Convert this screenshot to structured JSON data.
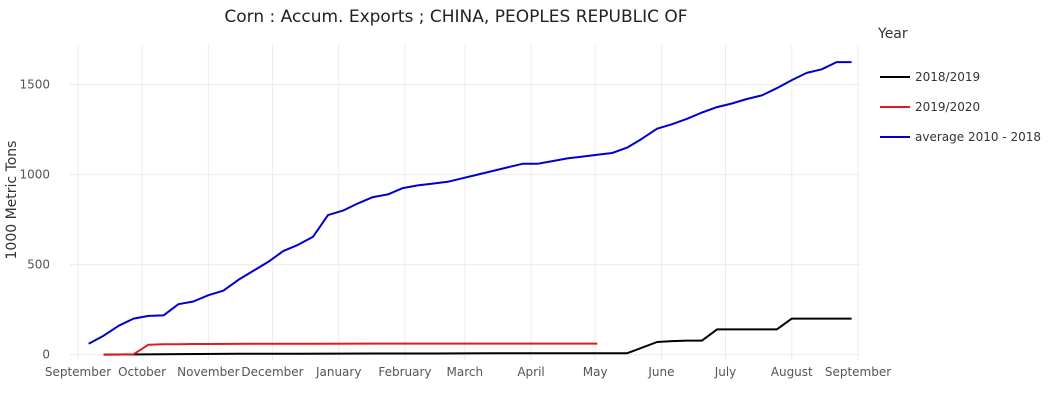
{
  "chart_data": {
    "type": "line",
    "title": "Corn :  Accum. Exports ;  CHINA, PEOPLES REPUBLIC OF",
    "xlabel": "",
    "ylabel": "1000 Metric Tons",
    "ylim": [
      -30,
      1720
    ],
    "yticks": [
      0,
      500,
      1000,
      1500
    ],
    "grid": true,
    "legend": {
      "title": "Year",
      "placement": "right"
    },
    "x_domain": [
      "2018-09-01",
      "2019-09-01"
    ],
    "x_ticks": [
      {
        "date": "2018-09-01",
        "label": "September"
      },
      {
        "date": "2018-10-01",
        "label": "October"
      },
      {
        "date": "2018-11-01",
        "label": "November"
      },
      {
        "date": "2018-12-01",
        "label": "December"
      },
      {
        "date": "2019-01-01",
        "label": "January"
      },
      {
        "date": "2019-02-01",
        "label": "February"
      },
      {
        "date": "2019-03-01",
        "label": "March"
      },
      {
        "date": "2019-04-01",
        "label": "April"
      },
      {
        "date": "2019-05-01",
        "label": "May"
      },
      {
        "date": "2019-06-01",
        "label": "June"
      },
      {
        "date": "2019-07-01",
        "label": "July"
      },
      {
        "date": "2019-08-01",
        "label": "August"
      },
      {
        "date": "2019-09-01",
        "label": "September"
      }
    ],
    "series": [
      {
        "name": "2018/2019",
        "color": "#000000",
        "x": [
          "2018-09-13",
          "2018-10-18",
          "2018-11-15",
          "2018-12-13",
          "2019-01-17",
          "2019-02-14",
          "2019-03-14",
          "2019-04-18",
          "2019-05-16",
          "2019-05-30",
          "2019-06-06",
          "2019-06-13",
          "2019-06-20",
          "2019-06-27",
          "2019-07-04",
          "2019-07-11",
          "2019-07-18",
          "2019-07-25",
          "2019-08-01",
          "2019-08-08",
          "2019-08-15",
          "2019-08-22",
          "2019-08-29"
        ],
        "y": [
          0,
          3,
          5,
          5,
          6,
          6,
          7,
          7,
          8,
          70,
          75,
          78,
          78,
          140,
          140,
          140,
          140,
          140,
          200,
          200,
          200,
          200,
          200
        ]
      },
      {
        "name": "2019/2020",
        "color": "#e31a1c",
        "x": [
          "2018-09-13",
          "2018-09-20",
          "2018-09-27",
          "2018-10-04",
          "2018-10-11",
          "2018-10-18",
          "2018-10-25",
          "2018-11-01",
          "2018-11-22",
          "2018-12-20",
          "2019-01-17",
          "2019-02-14",
          "2019-03-21",
          "2019-04-18",
          "2019-05-02"
        ],
        "y": [
          0,
          0,
          2,
          55,
          58,
          58,
          59,
          59,
          60,
          60,
          61,
          61,
          61,
          61,
          61
        ]
      },
      {
        "name": "average 2010 - 2018",
        "color": "#0000cc",
        "x": [
          "2018-09-06",
          "2018-09-13",
          "2018-09-20",
          "2018-09-27",
          "2018-10-04",
          "2018-10-11",
          "2018-10-18",
          "2018-10-25",
          "2018-11-01",
          "2018-11-08",
          "2018-11-15",
          "2018-11-22",
          "2018-11-29",
          "2018-12-06",
          "2018-12-13",
          "2018-12-20",
          "2018-12-27",
          "2019-01-03",
          "2019-01-10",
          "2019-01-17",
          "2019-01-24",
          "2019-01-31",
          "2019-02-07",
          "2019-02-14",
          "2019-02-21",
          "2019-02-28",
          "2019-03-07",
          "2019-03-14",
          "2019-03-21",
          "2019-03-28",
          "2019-04-04",
          "2019-04-11",
          "2019-04-18",
          "2019-04-25",
          "2019-05-02",
          "2019-05-09",
          "2019-05-16",
          "2019-05-23",
          "2019-05-30",
          "2019-06-06",
          "2019-06-13",
          "2019-06-20",
          "2019-06-27",
          "2019-07-04",
          "2019-07-11",
          "2019-07-18",
          "2019-07-25",
          "2019-08-01",
          "2019-08-08",
          "2019-08-15",
          "2019-08-22",
          "2019-08-29"
        ],
        "y": [
          60,
          105,
          160,
          200,
          215,
          218,
          280,
          295,
          330,
          355,
          415,
          465,
          515,
          575,
          610,
          655,
          775,
          800,
          840,
          875,
          890,
          925,
          940,
          950,
          960,
          980,
          1000,
          1020,
          1040,
          1060,
          1060,
          1075,
          1090,
          1100,
          1110,
          1120,
          1150,
          1200,
          1255,
          1280,
          1310,
          1345,
          1375,
          1395,
          1420,
          1440,
          1480,
          1525,
          1565,
          1585,
          1625,
          1625
        ]
      }
    ]
  }
}
